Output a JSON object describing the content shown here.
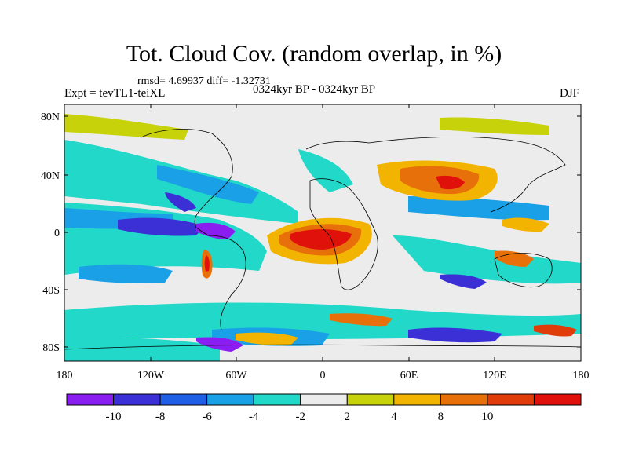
{
  "header": {
    "title": "Tot. Cloud Cov. (random overlap, in %)",
    "stats": "rmsd= 4.69937 diff= -1.32731",
    "experiment": "Expt = tevTL1-teiXL",
    "period": "0324kyr BP - 0324kyr BP",
    "season": "DJF"
  },
  "axes": {
    "lat_labels": [
      "80N",
      "40N",
      "0",
      "40S",
      "80S"
    ],
    "lon_labels": [
      "180",
      "120W",
      "60W",
      "0",
      "60E",
      "120E",
      "180"
    ]
  },
  "colorbar": {
    "labels": [
      "-10",
      "-8",
      "-6",
      "-4",
      "-2",
      "2",
      "4",
      "8",
      "10"
    ],
    "colors": [
      "#8a1ef0",
      "#3b2fd6",
      "#1f5fe6",
      "#1aa0e6",
      "#22d8c8",
      "#ececec",
      "#c8d20a",
      "#f2b400",
      "#e8700a",
      "#e03c0a",
      "#e0100a"
    ]
  }
}
